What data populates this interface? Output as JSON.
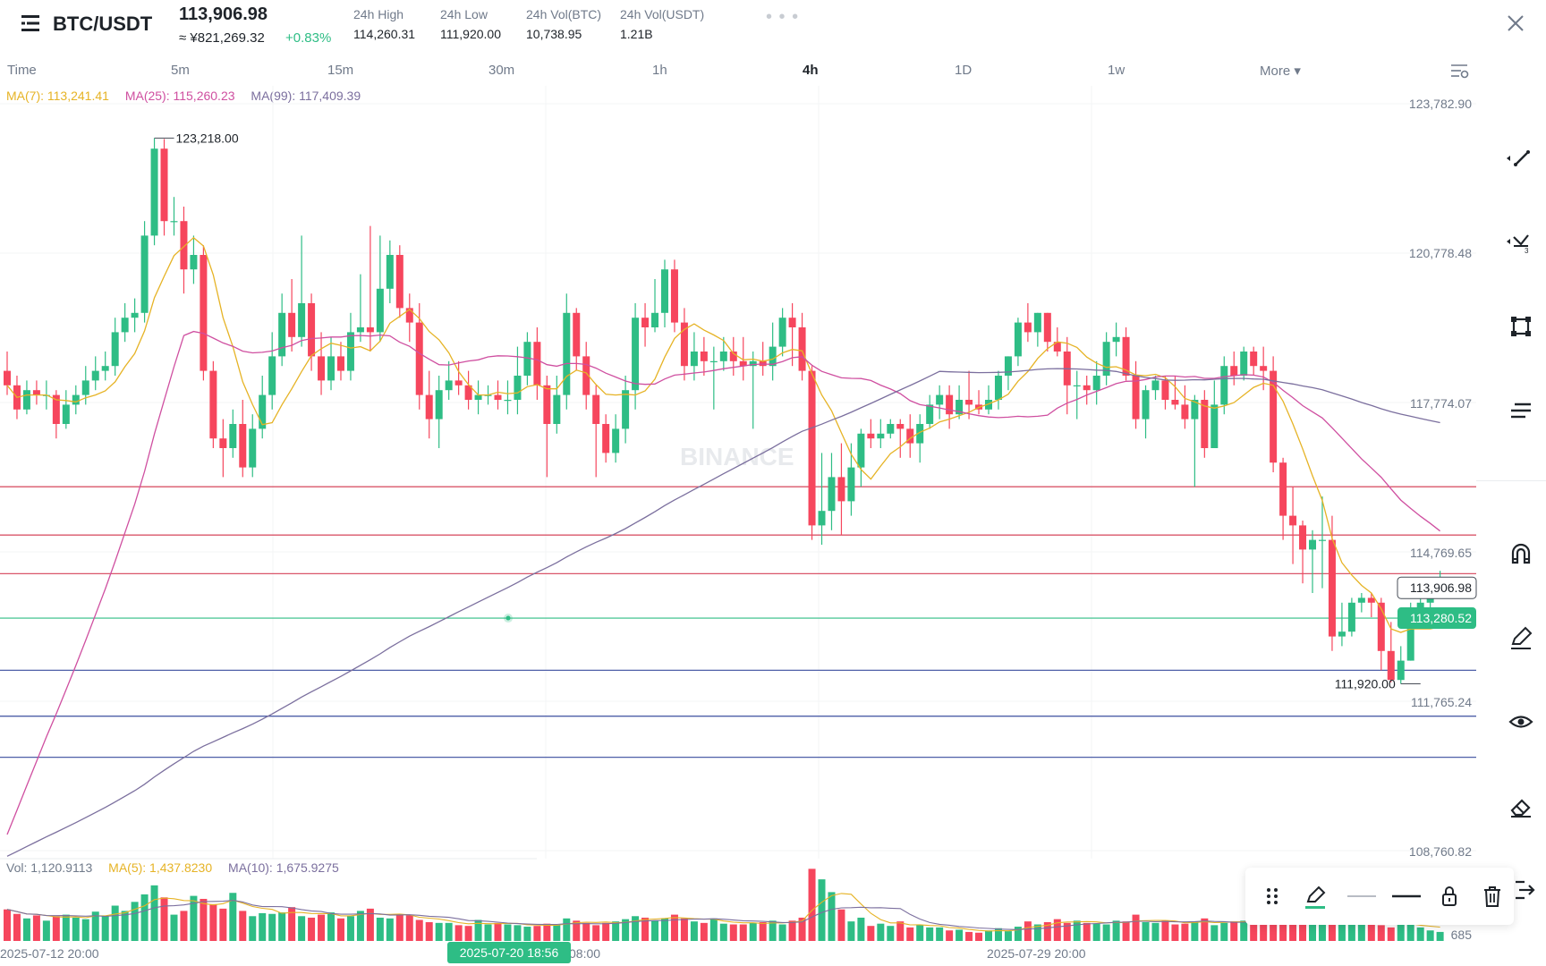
{
  "header": {
    "pair": "BTC/USDT",
    "price": "113,906.98",
    "price_cny": "≈ ¥821,269.32",
    "change": "+0.83%",
    "stats": [
      {
        "label": "24h High",
        "value": "114,260.31"
      },
      {
        "label": "24h Low",
        "value": "111,920.00"
      },
      {
        "label": "24h Vol(BTC)",
        "value": "10,738.95"
      },
      {
        "label": "24h Vol(USDT)",
        "value": "1.21B"
      }
    ],
    "dots": "• • •"
  },
  "timeframes": [
    "Time",
    "5m",
    "15m",
    "30m",
    "1h",
    "4h",
    "1D",
    "1w"
  ],
  "active_timeframe": "4h",
  "more_label": "More ▾",
  "ma_legend": {
    "ma7": "MA(7): 113,241.41",
    "ma25": "MA(25): 115,260.23",
    "ma99": "MA(99): 117,409.39"
  },
  "vol_legend": {
    "vol": "Vol: 1,120.9113",
    "ma5": "MA(5): 1,437.8230",
    "ma10": "MA(10): 1,675.9275"
  },
  "watermark": "BINANCE",
  "colors": {
    "up": "#2ebd85",
    "down": "#f6465d",
    "ma7": "#e6b325",
    "ma25": "#cf4fa0",
    "ma99": "#7b6f9e",
    "hline_red": "#d9566a",
    "hline_blue": "#4e5fa8",
    "hline_green": "#2ebd85"
  },
  "chart_data": {
    "type": "candlestick",
    "price_axis_labels": [
      "123,782.90",
      "120,778.48",
      "117,774.07",
      "114,769.65",
      "111,765.24",
      "108,760.82"
    ],
    "price_range": [
      108300,
      124300
    ],
    "current_price_label": "113,906.98",
    "current_price": 113906.98,
    "green_line_label": "113,280.52",
    "green_line": 113280.52,
    "high_annotation": "123,218.00",
    "high_value": 123218.0,
    "low_annotation": "111,920.00",
    "low_value": 111920.0,
    "red_lines": [
      116000,
      115000,
      114200
    ],
    "blue_lines": [
      112200,
      111250,
      110400
    ],
    "volume_axis_label": "685",
    "x_labels": [
      "2025-07-12 20:00",
      "2025-07-20 18:56",
      "2025-07-29 20:00"
    ],
    "crosshair_time_label": "2025-07-20 18:56",
    "x_label_behind_tooltip": "08:00",
    "candles": [
      [
        118400,
        118100,
        117900,
        118800
      ],
      [
        118100,
        117600,
        117400,
        118300
      ],
      [
        117600,
        118000,
        117500,
        118200
      ],
      [
        118000,
        117900,
        117700,
        118200
      ],
      [
        117900,
        117900,
        117600,
        118200
      ],
      [
        117900,
        117300,
        117000,
        118000
      ],
      [
        117300,
        117700,
        117200,
        118000
      ],
      [
        117700,
        117900,
        117500,
        118100
      ],
      [
        117900,
        118200,
        117700,
        118500
      ],
      [
        118200,
        118400,
        118000,
        118700
      ],
      [
        118400,
        118500,
        118200,
        118800
      ],
      [
        118500,
        119200,
        118300,
        119500
      ],
      [
        119200,
        119500,
        119000,
        119800
      ],
      [
        119500,
        119600,
        119200,
        119900
      ],
      [
        119600,
        121200,
        119400,
        121500
      ],
      [
        121200,
        123000,
        121000,
        123218
      ],
      [
        123000,
        121500,
        121200,
        123200
      ],
      [
        121500,
        121500,
        121200,
        122000
      ],
      [
        121500,
        120500,
        120000,
        121800
      ],
      [
        120500,
        120800,
        120200,
        121200
      ],
      [
        120800,
        118400,
        118200,
        121000
      ],
      [
        118400,
        117000,
        116800,
        118600
      ],
      [
        117000,
        116800,
        116200,
        117400
      ],
      [
        116800,
        117300,
        116600,
        117600
      ],
      [
        117300,
        116400,
        116200,
        117800
      ],
      [
        116400,
        117200,
        116200,
        117500
      ],
      [
        117200,
        117900,
        117000,
        118300
      ],
      [
        117900,
        118700,
        117600,
        119200
      ],
      [
        118700,
        119600,
        118500,
        120000
      ],
      [
        119600,
        119100,
        118800,
        120300
      ],
      [
        119100,
        119800,
        118900,
        121200
      ],
      [
        119800,
        118700,
        118400,
        120000
      ],
      [
        118700,
        118200,
        117900,
        119200
      ],
      [
        118200,
        118700,
        118000,
        119100
      ],
      [
        118700,
        118400,
        118200,
        119000
      ],
      [
        118400,
        119200,
        118200,
        119600
      ],
      [
        119200,
        119300,
        119000,
        120400
      ],
      [
        119300,
        119200,
        118800,
        121400
      ],
      [
        119200,
        120100,
        119000,
        121200
      ],
      [
        120100,
        120800,
        119800,
        121100
      ],
      [
        120800,
        119700,
        119500,
        121000
      ],
      [
        119700,
        119400,
        119000,
        120000
      ],
      [
        119400,
        117900,
        117600,
        119800
      ],
      [
        117900,
        117400,
        117000,
        118400
      ],
      [
        117400,
        118000,
        116800,
        118300
      ],
      [
        118000,
        118200,
        117800,
        118600
      ],
      [
        118200,
        118100,
        117900,
        118600
      ],
      [
        118100,
        117800,
        117600,
        118400
      ],
      [
        117800,
        117900,
        117500,
        118200
      ],
      [
        117900,
        117900,
        117700,
        118100
      ],
      [
        117900,
        117800,
        117600,
        118200
      ],
      [
        117800,
        117800,
        117500,
        118200
      ],
      [
        117800,
        118300,
        117500,
        118900
      ],
      [
        118300,
        119000,
        118100,
        119200
      ],
      [
        119000,
        118100,
        117800,
        119300
      ],
      [
        118100,
        117300,
        116200,
        118300
      ],
      [
        117300,
        117900,
        117100,
        118300
      ],
      [
        117900,
        119600,
        117600,
        120000
      ],
      [
        119600,
        118700,
        118400,
        119700
      ],
      [
        118700,
        117900,
        117600,
        119000
      ],
      [
        117900,
        117300,
        116200,
        118100
      ],
      [
        117300,
        116700,
        116500,
        117500
      ],
      [
        116700,
        117200,
        116500,
        117500
      ],
      [
        117200,
        118000,
        116900,
        118300
      ],
      [
        118000,
        119500,
        117600,
        119800
      ],
      [
        119500,
        119300,
        118900,
        119800
      ],
      [
        119300,
        119600,
        119200,
        120300
      ],
      [
        119600,
        120500,
        119300,
        120700
      ],
      [
        120500,
        119400,
        119200,
        120700
      ],
      [
        119400,
        118500,
        118200,
        119700
      ],
      [
        118500,
        118800,
        118200,
        119200
      ],
      [
        118800,
        118600,
        118300,
        119100
      ],
      [
        118600,
        118600,
        117600,
        118900
      ],
      [
        118600,
        118800,
        118400,
        119100
      ],
      [
        118800,
        118600,
        118300,
        119100
      ],
      [
        118600,
        118500,
        118200,
        119100
      ],
      [
        118500,
        118600,
        117200,
        118800
      ],
      [
        118600,
        118500,
        118300,
        119000
      ],
      [
        118500,
        118900,
        118200,
        119400
      ],
      [
        118900,
        119500,
        118700,
        119700
      ],
      [
        119500,
        119300,
        118500,
        119800
      ],
      [
        119300,
        118400,
        118200,
        119600
      ],
      [
        118400,
        115200,
        114900,
        118500
      ],
      [
        115200,
        115500,
        114800,
        116700
      ],
      [
        115500,
        116200,
        115100,
        116700
      ],
      [
        116200,
        115700,
        115000,
        116900
      ],
      [
        115700,
        116400,
        115400,
        116900
      ],
      [
        116400,
        117100,
        116000,
        117200
      ],
      [
        117100,
        117000,
        116800,
        117400
      ],
      [
        117000,
        117100,
        116800,
        117400
      ],
      [
        117100,
        117300,
        117000,
        117400
      ],
      [
        117300,
        117200,
        116600,
        117400
      ],
      [
        117200,
        116900,
        116600,
        117500
      ],
      [
        116900,
        117300,
        116500,
        117500
      ],
      [
        117300,
        117700,
        117200,
        117900
      ],
      [
        117700,
        117900,
        117400,
        118100
      ],
      [
        117900,
        117500,
        117200,
        118100
      ],
      [
        117500,
        117800,
        117400,
        118100
      ],
      [
        117800,
        117700,
        117400,
        118400
      ],
      [
        117700,
        117600,
        117500,
        118000
      ],
      [
        117600,
        117800,
        117500,
        118100
      ],
      [
        117800,
        118300,
        117600,
        118400
      ],
      [
        118300,
        118700,
        118000,
        118700
      ],
      [
        118700,
        119400,
        118500,
        119500
      ],
      [
        119400,
        119200,
        119000,
        119800
      ],
      [
        119200,
        119600,
        118900,
        119600
      ],
      [
        119600,
        119000,
        118800,
        119600
      ],
      [
        119000,
        118800,
        118700,
        119300
      ],
      [
        118800,
        118100,
        117500,
        119100
      ],
      [
        118100,
        118100,
        117400,
        118400
      ],
      [
        118100,
        118000,
        117700,
        118300
      ],
      [
        118000,
        118300,
        117700,
        118600
      ],
      [
        118300,
        119000,
        118100,
        119200
      ],
      [
        119000,
        119100,
        118700,
        119400
      ],
      [
        119100,
        118300,
        118200,
        119300
      ],
      [
        118300,
        117400,
        117200,
        118600
      ],
      [
        117400,
        118000,
        117000,
        118100
      ],
      [
        118000,
        118200,
        117800,
        118300
      ],
      [
        118200,
        117800,
        117600,
        118300
      ],
      [
        117800,
        117700,
        117600,
        118300
      ],
      [
        117700,
        117400,
        117200,
        118100
      ],
      [
        117400,
        117800,
        116000,
        117900
      ],
      [
        117800,
        116800,
        116600,
        118000
      ],
      [
        116800,
        117700,
        116800,
        118200
      ],
      [
        117700,
        118500,
        117500,
        118700
      ],
      [
        118500,
        118300,
        118100,
        118800
      ],
      [
        118300,
        118800,
        118200,
        118900
      ],
      [
        118800,
        118500,
        118300,
        118900
      ],
      [
        118500,
        118400,
        118000,
        118900
      ],
      [
        118400,
        116500,
        116300,
        118700
      ],
      [
        116500,
        115400,
        114900,
        116600
      ],
      [
        115400,
        115200,
        114400,
        116000
      ],
      [
        115200,
        114700,
        114000,
        115300
      ],
      [
        114700,
        114900,
        113800,
        115100
      ],
      [
        114900,
        114900,
        113900,
        115800
      ],
      [
        114900,
        112900,
        112600,
        115400
      ],
      [
        112900,
        113000,
        112700,
        113600
      ],
      [
        113000,
        113600,
        112900,
        113700
      ],
      [
        113600,
        113700,
        113400,
        113800
      ],
      [
        113700,
        113600,
        113300,
        113800
      ],
      [
        113600,
        112600,
        112200,
        113700
      ],
      [
        112600,
        112000,
        111950,
        113200
      ],
      [
        112000,
        112400,
        111920,
        112700
      ],
      [
        112400,
        113500,
        112400,
        113600
      ],
      [
        113500,
        113600,
        113400,
        113700
      ],
      [
        113600,
        113700,
        113500,
        113900
      ],
      [
        113700,
        113900,
        113700,
        114260
      ]
    ],
    "volumes_pct": [
      0.42,
      0.36,
      0.3,
      0.34,
      0.27,
      0.33,
      0.35,
      0.31,
      0.29,
      0.39,
      0.33,
      0.47,
      0.4,
      0.52,
      0.62,
      0.74,
      0.58,
      0.35,
      0.4,
      0.6,
      0.56,
      0.49,
      0.43,
      0.64,
      0.4,
      0.33,
      0.37,
      0.36,
      0.38,
      0.45,
      0.33,
      0.31,
      0.35,
      0.38,
      0.3,
      0.33,
      0.4,
      0.43,
      0.31,
      0.3,
      0.35,
      0.34,
      0.28,
      0.25,
      0.24,
      0.24,
      0.21,
      0.2,
      0.28,
      0.22,
      0.24,
      0.22,
      0.21,
      0.19,
      0.2,
      0.23,
      0.21,
      0.3,
      0.27,
      0.24,
      0.21,
      0.24,
      0.26,
      0.29,
      0.33,
      0.31,
      0.27,
      0.3,
      0.35,
      0.3,
      0.26,
      0.24,
      0.3,
      0.23,
      0.22,
      0.22,
      0.24,
      0.25,
      0.27,
      0.22,
      0.27,
      0.31,
      0.96,
      0.82,
      0.65,
      0.42,
      0.26,
      0.31,
      0.2,
      0.23,
      0.2,
      0.26,
      0.18,
      0.21,
      0.18,
      0.18,
      0.14,
      0.15,
      0.12,
      0.11,
      0.14,
      0.17,
      0.13,
      0.19,
      0.26,
      0.22,
      0.25,
      0.29,
      0.24,
      0.27,
      0.24,
      0.23,
      0.22,
      0.27,
      0.26,
      0.35,
      0.25,
      0.24,
      0.27,
      0.22,
      0.23,
      0.26,
      0.3,
      0.21,
      0.24,
      0.26,
      0.27,
      0.32,
      0.27,
      0.29,
      0.35,
      0.42,
      0.4,
      0.33,
      0.27,
      0.29,
      0.31,
      0.35,
      0.29,
      0.28,
      0.21,
      0.18,
      0.26,
      0.22,
      0.18,
      0.14,
      0.12,
      0.1
    ]
  },
  "bottom_toolbar": [
    "drag-handle",
    "pen",
    "thin-line",
    "thick-line",
    "lock",
    "delete"
  ]
}
